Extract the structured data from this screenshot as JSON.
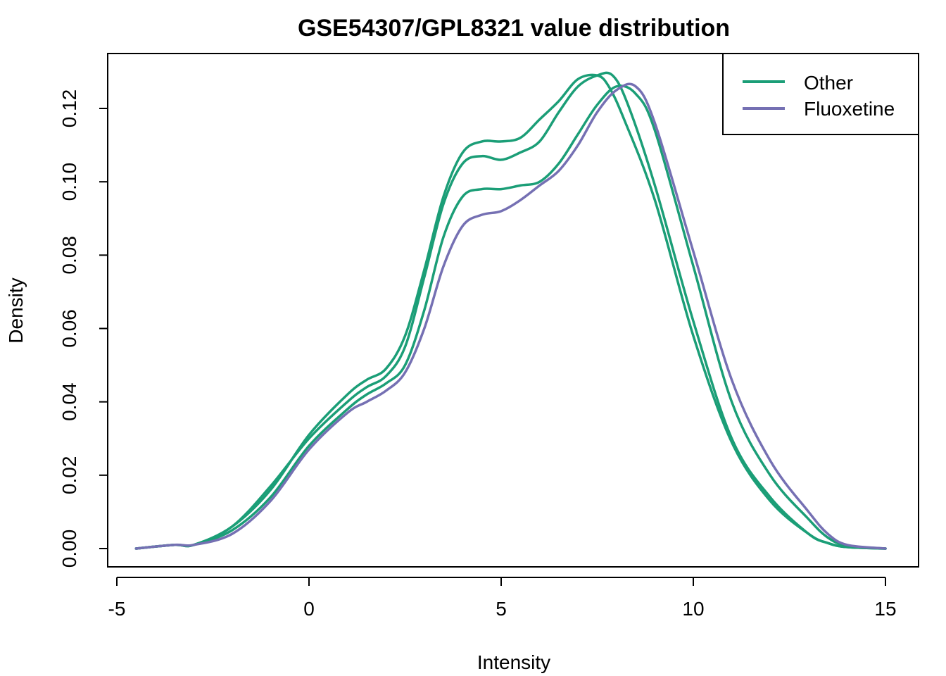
{
  "chart_data": {
    "type": "line",
    "title": "GSE54307/GPL8321 value distribution",
    "xlabel": "Intensity",
    "ylabel": "Density",
    "xlim": [
      -5,
      15
    ],
    "ylim": [
      0,
      0.13
    ],
    "x_ticks": [
      -5,
      0,
      5,
      10,
      15
    ],
    "x_tick_labels": [
      "-5",
      "0",
      "5",
      "10",
      "15"
    ],
    "y_ticks": [
      0,
      0.02,
      0.04,
      0.06,
      0.08,
      0.1,
      0.12
    ],
    "y_tick_labels": [
      "0.00",
      "0.02",
      "0.04",
      "0.06",
      "0.08",
      "0.10",
      "0.12"
    ],
    "grid": false,
    "legend_position": "top-right",
    "legend": [
      {
        "label": "Other",
        "color": "#1b9e77"
      },
      {
        "label": "Fluoxetine",
        "color": "#7570b3"
      }
    ],
    "series": [
      {
        "group": "Other",
        "color": "#1b9e77",
        "x": [
          -4.5,
          -3.5,
          -3,
          -2,
          -1,
          0,
          1,
          1.5,
          2,
          2.5,
          3,
          3.5,
          4,
          4.5,
          5,
          5.5,
          6,
          6.5,
          7,
          7.5,
          7.8,
          8.2,
          9,
          10,
          11,
          12,
          13,
          13.5,
          14,
          15
        ],
        "y": [
          0.0,
          0.001,
          0.001,
          0.006,
          0.016,
          0.031,
          0.042,
          0.046,
          0.049,
          0.058,
          0.076,
          0.096,
          0.108,
          0.111,
          0.111,
          0.112,
          0.117,
          0.122,
          0.128,
          0.129,
          0.126,
          0.117,
          0.095,
          0.058,
          0.029,
          0.013,
          0.004,
          0.0015,
          0.0004,
          0.0
        ]
      },
      {
        "group": "Other",
        "color": "#1b9e77",
        "x": [
          -4.5,
          -3.5,
          -3,
          -2,
          -1,
          0,
          1,
          1.5,
          2,
          2.5,
          3,
          3.5,
          4,
          4.5,
          5,
          5.5,
          6,
          6.5,
          7,
          7.5,
          7.9,
          8.3,
          9,
          10,
          11,
          12,
          13,
          13.5,
          14,
          15
        ],
        "y": [
          0.0,
          0.001,
          0.001,
          0.006,
          0.017,
          0.03,
          0.04,
          0.044,
          0.047,
          0.055,
          0.074,
          0.094,
          0.105,
          0.107,
          0.106,
          0.108,
          0.111,
          0.119,
          0.126,
          0.129,
          0.129,
          0.121,
          0.099,
          0.062,
          0.03,
          0.014,
          0.004,
          0.0015,
          0.0004,
          0.0
        ]
      },
      {
        "group": "Other",
        "color": "#1b9e77",
        "x": [
          -4.5,
          -3.5,
          -3,
          -2,
          -1,
          0,
          1,
          1.5,
          2,
          2.5,
          3,
          3.5,
          4,
          4.5,
          5,
          5.5,
          6,
          6.5,
          7,
          7.5,
          8,
          8.5,
          9,
          10,
          11,
          12,
          13,
          13.5,
          14,
          15
        ],
        "y": [
          0.0,
          0.001,
          0.001,
          0.005,
          0.014,
          0.028,
          0.038,
          0.042,
          0.045,
          0.05,
          0.065,
          0.085,
          0.096,
          0.098,
          0.098,
          0.099,
          0.1,
          0.105,
          0.113,
          0.121,
          0.126,
          0.124,
          0.114,
          0.077,
          0.04,
          0.02,
          0.008,
          0.003,
          0.0008,
          0.0
        ]
      },
      {
        "group": "Fluoxetine",
        "color": "#7570b3",
        "x": [
          -4.5,
          -3.5,
          -3,
          -2,
          -1,
          0,
          1,
          1.5,
          2,
          2.5,
          3,
          3.5,
          4,
          4.5,
          5,
          5.5,
          6,
          6.5,
          7,
          7.5,
          8,
          8.5,
          9,
          10,
          11,
          12,
          13,
          13.5,
          14,
          15
        ],
        "y": [
          0.0,
          0.001,
          0.001,
          0.004,
          0.013,
          0.027,
          0.037,
          0.04,
          0.043,
          0.048,
          0.06,
          0.077,
          0.088,
          0.091,
          0.092,
          0.095,
          0.099,
          0.103,
          0.11,
          0.119,
          0.125,
          0.126,
          0.116,
          0.081,
          0.046,
          0.024,
          0.01,
          0.004,
          0.001,
          0.0
        ]
      }
    ]
  }
}
